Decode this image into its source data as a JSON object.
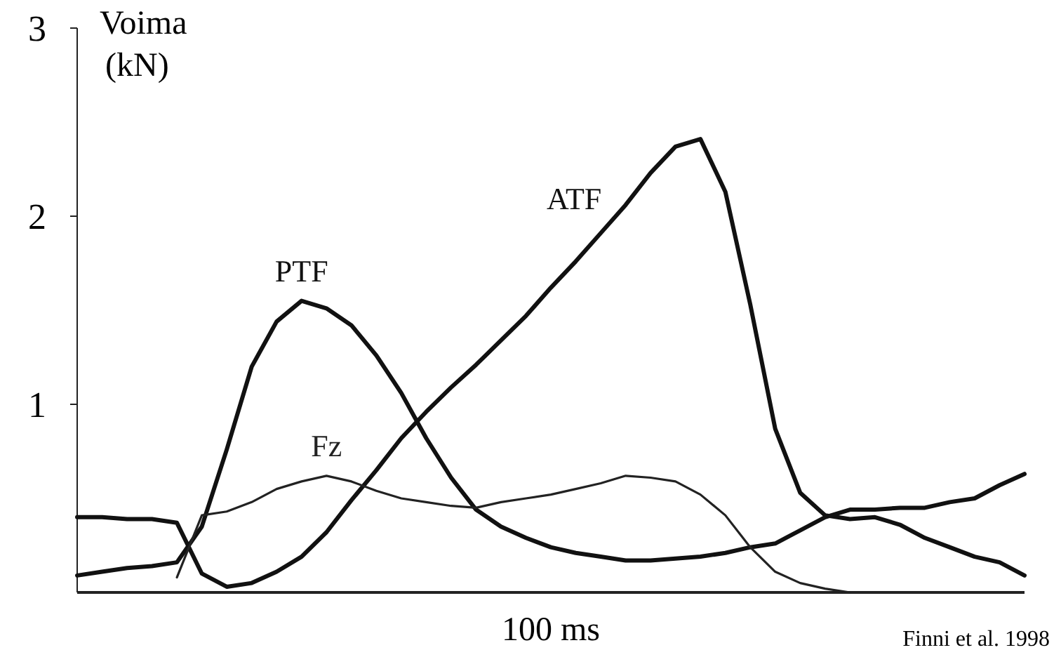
{
  "chart_data": {
    "type": "line",
    "ylabel": "Voima (kN)",
    "xlabel": "100 ms",
    "annotations": [
      "Finni et al. 1998"
    ],
    "categories": [
      null,
      null,
      null,
      null,
      null,
      null,
      null,
      null,
      null,
      null,
      null,
      null,
      null,
      null,
      null,
      null,
      null,
      null,
      null,
      null,
      null,
      null,
      null,
      null,
      null,
      null,
      null,
      null,
      null,
      null,
      null,
      null,
      null,
      null,
      null,
      null,
      null,
      null,
      null
    ],
    "ylim": [
      0,
      3
    ],
    "yticks": [
      1,
      2,
      3
    ],
    "marker": "none",
    "line_style": "solid",
    "series": [
      {
        "name": "ATF",
        "color": "#111111",
        "values": [
          0.4,
          0.4,
          0.39,
          0.39,
          0.37,
          0.1,
          0.03,
          0.05,
          0.11,
          0.19,
          0.32,
          0.49,
          0.65,
          0.82,
          0.96,
          1.09,
          1.21,
          1.34,
          1.47,
          1.62,
          1.76,
          1.91,
          2.06,
          2.23,
          2.37,
          2.41,
          2.13,
          1.53,
          0.87,
          0.53,
          0.41,
          0.39,
          0.4,
          0.36,
          0.29,
          0.24,
          0.19,
          0.16,
          0.09
        ]
      },
      {
        "name": "PTF",
        "color": "#111111",
        "values": [
          0.09,
          0.11,
          0.13,
          0.14,
          0.16,
          0.35,
          0.76,
          1.2,
          1.44,
          1.55,
          1.51,
          1.42,
          1.26,
          1.06,
          0.82,
          0.61,
          0.44,
          0.35,
          0.29,
          0.24,
          0.21,
          0.19,
          0.17,
          0.17,
          0.18,
          0.19,
          0.21,
          0.24,
          0.26,
          0.33,
          0.4,
          0.44,
          0.44,
          0.45,
          0.45,
          0.48,
          0.5,
          0.57,
          0.63
        ]
      },
      {
        "name": "Fz",
        "color": "#222222",
        "values": [
          null,
          null,
          null,
          null,
          0.08,
          0.41,
          0.43,
          0.48,
          0.55,
          0.59,
          0.62,
          0.59,
          0.54,
          0.5,
          0.48,
          0.46,
          0.45,
          0.48,
          0.5,
          0.52,
          0.55,
          0.58,
          0.62,
          0.61,
          0.59,
          0.52,
          0.41,
          0.24,
          0.11,
          0.05,
          0.02,
          0,
          null,
          null,
          null,
          null,
          null,
          null,
          null
        ]
      }
    ]
  }
}
